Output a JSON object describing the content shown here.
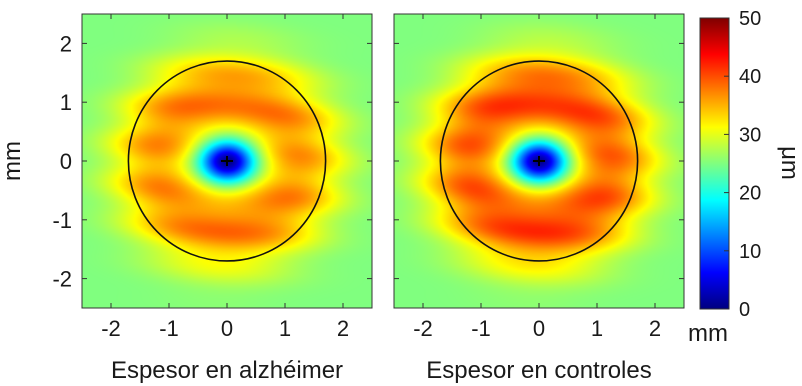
{
  "chart_data": [
    {
      "type": "heatmap",
      "title": "",
      "xlabel": "Espesor en alzhéimer",
      "ylabel": "mm",
      "xlim": [
        -2.5,
        2.5
      ],
      "ylim": [
        -2.5,
        2.5
      ],
      "x_ticks": [
        "-2",
        "-1",
        "0",
        "1",
        "2"
      ],
      "y_ticks": [
        "2",
        "1",
        "0",
        "-1",
        "-2"
      ],
      "circle_radius_mm": 1.7,
      "center_marker": "+",
      "thickness_model": {
        "background": 25,
        "ring_peak": 38,
        "ring_radius_mm": 1.1,
        "fovea_min": 7
      }
    },
    {
      "type": "heatmap",
      "title": "",
      "xlabel": "Espesor en controles",
      "x_unit": "mm",
      "xlim": [
        -2.5,
        2.5
      ],
      "ylim": [
        -2.5,
        2.5
      ],
      "x_ticks": [
        "-2",
        "-1",
        "0",
        "1",
        "2"
      ],
      "circle_radius_mm": 1.7,
      "center_marker": "+",
      "thickness_model": {
        "background": 25,
        "ring_peak": 41,
        "ring_radius_mm": 1.1,
        "fovea_min": 7
      }
    }
  ],
  "colorbar": {
    "label": "μm",
    "min": 0,
    "max": 50,
    "ticks": [
      "0",
      "10",
      "20",
      "30",
      "40",
      "50"
    ],
    "colormap": "jet"
  }
}
